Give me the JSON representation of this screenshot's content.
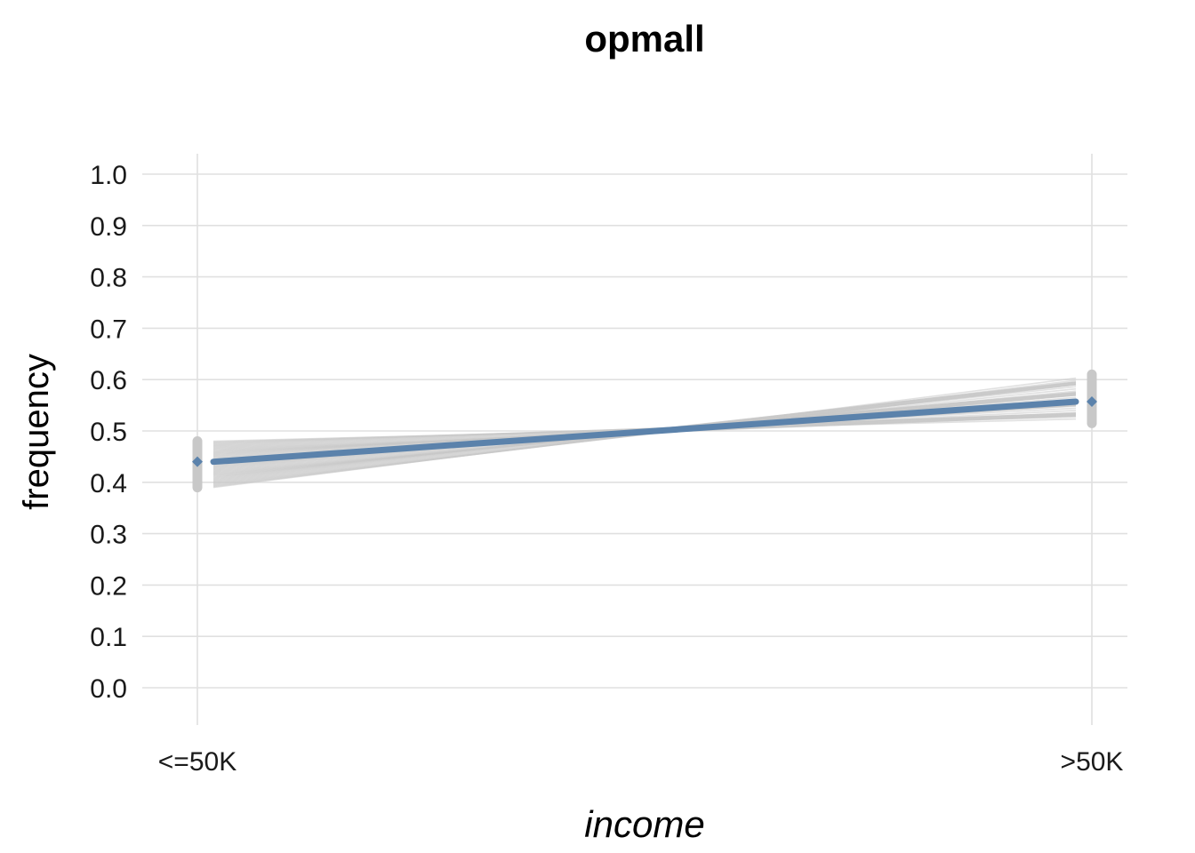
{
  "chart_data": {
    "type": "line",
    "title": "opmall",
    "xlabel": "income",
    "ylabel": "frequency",
    "categories": [
      "<=50K",
      ">50K"
    ],
    "ylim": [
      0,
      1
    ],
    "yticks": [
      "0.0",
      "0.1",
      "0.2",
      "0.3",
      "0.4",
      "0.5",
      "0.6",
      "0.7",
      "0.8",
      "0.9",
      "1.0"
    ],
    "grid": true,
    "series": [
      {
        "values": [
          0.44,
          0.557
        ]
      }
    ],
    "resample_range": {
      "<=50K": [
        0.39,
        0.48
      ],
      ">50K": [
        0.515,
        0.61
      ]
    },
    "colors": {
      "main": "#5b82ab",
      "resample": "#c8c8c8"
    }
  }
}
